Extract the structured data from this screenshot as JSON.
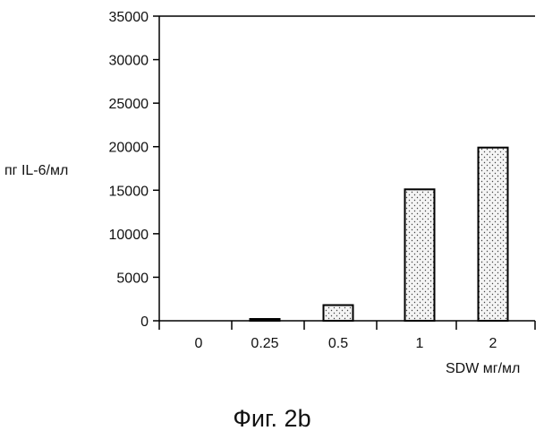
{
  "chart_data": {
    "type": "bar",
    "categories": [
      "0",
      "0.25",
      "0.5",
      "1",
      "2"
    ],
    "values": [
      0,
      150,
      1800,
      15100,
      19900
    ],
    "ylabel": "пг IL-6/мл",
    "xlabel": "SDW мг/мл",
    "ylim": [
      0,
      35000
    ],
    "yticks": [
      0,
      5000,
      10000,
      15000,
      20000,
      25000,
      30000,
      35000
    ],
    "grid": false,
    "bar_fill": "stippled",
    "colors": {
      "bar_outline": "#000000",
      "axis": "#000000"
    }
  },
  "caption": "Фиг. 2b"
}
